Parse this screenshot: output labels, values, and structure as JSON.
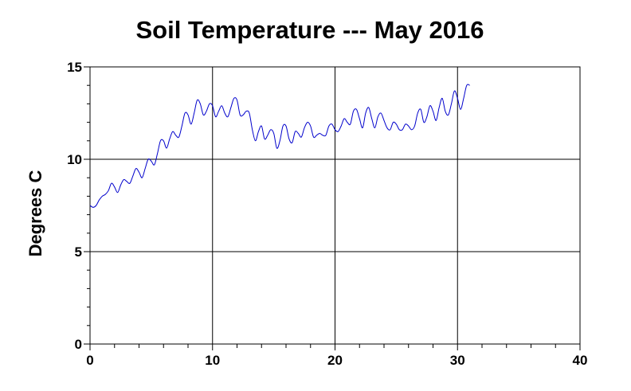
{
  "chart_data": {
    "type": "line",
    "title": "Soil Temperature --- May 2016",
    "xlabel": "",
    "ylabel": "Degrees C",
    "xlim": [
      0,
      40
    ],
    "ylim": [
      0,
      15
    ],
    "x_ticks": [
      0,
      10,
      20,
      30,
      40
    ],
    "y_ticks": [
      0,
      5,
      10,
      15
    ],
    "x_tick_labels": [
      "0",
      "10",
      "20",
      "30",
      "40"
    ],
    "y_tick_labels": [
      "0",
      "5",
      "10",
      "15"
    ],
    "grid": true,
    "legend": "none",
    "series": [
      {
        "color": "#0000cc",
        "x": [
          0,
          0.25,
          0.5,
          0.75,
          1,
          1.25,
          1.5,
          1.75,
          2,
          2.25,
          2.5,
          2.75,
          3,
          3.25,
          3.5,
          3.75,
          4,
          4.25,
          4.5,
          4.75,
          5,
          5.25,
          5.5,
          5.75,
          6,
          6.25,
          6.5,
          6.75,
          7,
          7.25,
          7.5,
          7.75,
          8,
          8.25,
          8.5,
          8.75,
          9,
          9.25,
          9.5,
          9.75,
          10,
          10.25,
          10.5,
          10.75,
          11,
          11.25,
          11.5,
          11.75,
          12,
          12.25,
          12.5,
          12.75,
          13,
          13.25,
          13.5,
          13.75,
          14,
          14.25,
          14.5,
          14.75,
          15,
          15.25,
          15.5,
          15.75,
          16,
          16.25,
          16.5,
          16.75,
          17,
          17.25,
          17.5,
          17.75,
          18,
          18.25,
          18.5,
          18.75,
          19,
          19.25,
          19.5,
          19.75,
          20,
          20.25,
          20.5,
          20.75,
          21,
          21.25,
          21.5,
          21.75,
          22,
          22.25,
          22.5,
          22.75,
          23,
          23.25,
          23.5,
          23.75,
          24,
          24.25,
          24.5,
          24.75,
          25,
          25.25,
          25.5,
          25.75,
          26,
          26.25,
          26.5,
          26.75,
          27,
          27.25,
          27.5,
          27.75,
          28,
          28.25,
          28.5,
          28.75,
          29,
          29.25,
          29.5,
          29.75,
          30,
          30.25,
          30.5,
          30.75,
          31
        ],
        "values": [
          7.5,
          7.4,
          7.5,
          7.8,
          8.0,
          8.1,
          8.3,
          8.7,
          8.5,
          8.2,
          8.6,
          8.9,
          8.8,
          8.7,
          9.1,
          9.5,
          9.3,
          9.0,
          9.5,
          10.0,
          9.9,
          9.7,
          10.3,
          11.0,
          11.0,
          10.6,
          11.1,
          11.5,
          11.3,
          11.2,
          11.8,
          12.5,
          12.4,
          11.9,
          12.5,
          13.2,
          13.0,
          12.4,
          12.6,
          13.0,
          12.9,
          12.3,
          12.6,
          12.9,
          12.5,
          12.3,
          12.8,
          13.3,
          13.2,
          12.4,
          12.4,
          12.6,
          12.5,
          11.6,
          11.0,
          11.5,
          11.8,
          11.1,
          11.3,
          11.6,
          11.4,
          10.6,
          11.0,
          11.8,
          11.8,
          11.1,
          10.9,
          11.5,
          11.4,
          11.2,
          11.7,
          12.0,
          11.8,
          11.2,
          11.3,
          11.4,
          11.3,
          11.3,
          11.8,
          11.9,
          11.6,
          11.5,
          11.8,
          12.2,
          12.0,
          11.9,
          12.6,
          12.7,
          12.2,
          11.7,
          12.5,
          12.8,
          12.2,
          11.7,
          12.3,
          12.5,
          12.1,
          11.7,
          11.6,
          12.0,
          11.9,
          11.6,
          11.6,
          11.9,
          11.8,
          11.6,
          11.8,
          12.5,
          12.7,
          12.0,
          12.3,
          12.9,
          12.6,
          12.1,
          12.8,
          13.3,
          12.6,
          12.4,
          13.0,
          13.7,
          13.3,
          12.7,
          13.3,
          14.0,
          14.0
        ]
      }
    ]
  }
}
